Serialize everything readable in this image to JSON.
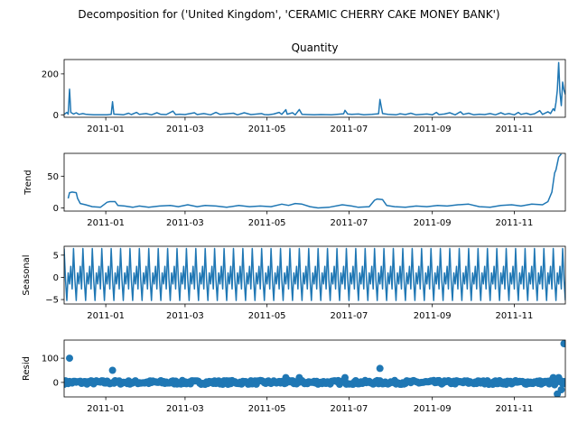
{
  "chart_data": {
    "type": "line",
    "title": "Decomposition for ('United Kingdom', 'CERAMIC CHERRY CAKE MONEY BANK')",
    "x_tick_labels": [
      "2011-01",
      "2011-03",
      "2011-05",
      "2011-07",
      "2011-09",
      "2011-11"
    ],
    "x_tick_dates": [
      "2011-01-01",
      "2011-03-01",
      "2011-05-01",
      "2011-07-01",
      "2011-09-01",
      "2011-11-01"
    ],
    "x_range": [
      "2010-12-01",
      "2011-12-09"
    ],
    "panels": [
      {
        "key": "observed",
        "title": "Quantity",
        "ylabel": "",
        "style": "line",
        "color": "#1f77b4",
        "ylim": [
          -12,
          270
        ],
        "yticks": [
          0,
          200
        ],
        "points": [
          [
            "2010-12-01",
            2
          ],
          [
            "2010-12-03",
            12
          ],
          [
            "2010-12-04",
            3
          ],
          [
            "2010-12-05",
            125
          ],
          [
            "2010-12-06",
            12
          ],
          [
            "2010-12-08",
            4
          ],
          [
            "2010-12-10",
            10
          ],
          [
            "2010-12-12",
            2
          ],
          [
            "2010-12-15",
            6
          ],
          [
            "2010-12-17",
            3
          ],
          [
            "2010-12-20",
            1
          ],
          [
            "2010-12-23",
            0
          ],
          [
            "2011-01-02",
            0
          ],
          [
            "2011-01-05",
            2
          ],
          [
            "2011-01-06",
            64
          ],
          [
            "2011-01-07",
            3
          ],
          [
            "2011-01-10",
            2
          ],
          [
            "2011-01-14",
            0
          ],
          [
            "2011-01-18",
            8
          ],
          [
            "2011-01-20",
            1
          ],
          [
            "2011-01-24",
            12
          ],
          [
            "2011-01-26",
            2
          ],
          [
            "2011-01-31",
            6
          ],
          [
            "2011-02-04",
            0
          ],
          [
            "2011-02-08",
            10
          ],
          [
            "2011-02-11",
            2
          ],
          [
            "2011-02-15",
            1
          ],
          [
            "2011-02-20",
            18
          ],
          [
            "2011-02-22",
            1
          ],
          [
            "2011-02-25",
            3
          ],
          [
            "2011-03-01",
            1
          ],
          [
            "2011-03-03",
            4
          ],
          [
            "2011-03-08",
            10
          ],
          [
            "2011-03-10",
            1
          ],
          [
            "2011-03-15",
            6
          ],
          [
            "2011-03-20",
            0
          ],
          [
            "2011-03-24",
            12
          ],
          [
            "2011-03-27",
            2
          ],
          [
            "2011-04-01",
            5
          ],
          [
            "2011-04-06",
            8
          ],
          [
            "2011-04-09",
            0
          ],
          [
            "2011-04-14",
            10
          ],
          [
            "2011-04-19",
            1
          ],
          [
            "2011-04-22",
            3
          ],
          [
            "2011-04-27",
            6
          ],
          [
            "2011-04-29",
            1
          ],
          [
            "2011-05-02",
            0
          ],
          [
            "2011-05-06",
            4
          ],
          [
            "2011-05-10",
            12
          ],
          [
            "2011-05-12",
            2
          ],
          [
            "2011-05-15",
            25
          ],
          [
            "2011-05-16",
            3
          ],
          [
            "2011-05-20",
            10
          ],
          [
            "2011-05-22",
            0
          ],
          [
            "2011-05-25",
            26
          ],
          [
            "2011-05-27",
            2
          ],
          [
            "2011-05-31",
            1
          ],
          [
            "2011-06-05",
            0
          ],
          [
            "2011-06-10",
            1
          ],
          [
            "2011-06-18",
            0
          ],
          [
            "2011-06-27",
            5
          ],
          [
            "2011-06-28",
            22
          ],
          [
            "2011-06-30",
            4
          ],
          [
            "2011-07-03",
            2
          ],
          [
            "2011-07-08",
            4
          ],
          [
            "2011-07-12",
            0
          ],
          [
            "2011-07-18",
            2
          ],
          [
            "2011-07-23",
            5
          ],
          [
            "2011-07-24",
            75
          ],
          [
            "2011-07-26",
            6
          ],
          [
            "2011-07-30",
            2
          ],
          [
            "2011-08-05",
            0
          ],
          [
            "2011-08-08",
            5
          ],
          [
            "2011-08-12",
            1
          ],
          [
            "2011-08-16",
            8
          ],
          [
            "2011-08-20",
            0
          ],
          [
            "2011-08-28",
            4
          ],
          [
            "2011-09-01",
            0
          ],
          [
            "2011-09-04",
            12
          ],
          [
            "2011-09-06",
            1
          ],
          [
            "2011-09-10",
            4
          ],
          [
            "2011-09-14",
            10
          ],
          [
            "2011-09-18",
            0
          ],
          [
            "2011-09-22",
            15
          ],
          [
            "2011-09-24",
            2
          ],
          [
            "2011-09-28",
            8
          ],
          [
            "2011-10-02",
            0
          ],
          [
            "2011-10-06",
            3
          ],
          [
            "2011-10-10",
            1
          ],
          [
            "2011-10-14",
            6
          ],
          [
            "2011-10-18",
            0
          ],
          [
            "2011-10-22",
            10
          ],
          [
            "2011-10-25",
            2
          ],
          [
            "2011-10-28",
            6
          ],
          [
            "2011-11-01",
            0
          ],
          [
            "2011-11-04",
            12
          ],
          [
            "2011-11-06",
            2
          ],
          [
            "2011-11-10",
            8
          ],
          [
            "2011-11-13",
            1
          ],
          [
            "2011-11-16",
            5
          ],
          [
            "2011-11-20",
            20
          ],
          [
            "2011-11-22",
            2
          ],
          [
            "2011-11-26",
            15
          ],
          [
            "2011-11-28",
            6
          ],
          [
            "2011-11-30",
            30
          ],
          [
            "2011-12-01",
            20
          ],
          [
            "2011-12-02",
            60
          ],
          [
            "2011-12-03",
            120
          ],
          [
            "2011-12-04",
            255
          ],
          [
            "2011-12-05",
            110
          ],
          [
            "2011-12-06",
            45
          ],
          [
            "2011-12-07",
            160
          ],
          [
            "2011-12-08",
            120
          ],
          [
            "2011-12-09",
            100
          ]
        ]
      },
      {
        "key": "trend",
        "title": "",
        "ylabel": "Trend",
        "style": "line",
        "color": "#1f77b4",
        "ylim": [
          -5,
          86
        ],
        "yticks": [
          0,
          50
        ],
        "points": [
          [
            "2010-12-04",
            15
          ],
          [
            "2010-12-05",
            24
          ],
          [
            "2010-12-07",
            25
          ],
          [
            "2010-12-10",
            24
          ],
          [
            "2010-12-11",
            15
          ],
          [
            "2010-12-13",
            7
          ],
          [
            "2010-12-17",
            5
          ],
          [
            "2010-12-22",
            2
          ],
          [
            "2010-12-28",
            1
          ],
          [
            "2011-01-02",
            9
          ],
          [
            "2011-01-04",
            10
          ],
          [
            "2011-01-08",
            10
          ],
          [
            "2011-01-10",
            4
          ],
          [
            "2011-01-15",
            3
          ],
          [
            "2011-01-21",
            1
          ],
          [
            "2011-01-26",
            3
          ],
          [
            "2011-02-02",
            1
          ],
          [
            "2011-02-10",
            3
          ],
          [
            "2011-02-18",
            4
          ],
          [
            "2011-02-24",
            2
          ],
          [
            "2011-03-03",
            5
          ],
          [
            "2011-03-10",
            2
          ],
          [
            "2011-03-16",
            4
          ],
          [
            "2011-03-24",
            3
          ],
          [
            "2011-04-01",
            1
          ],
          [
            "2011-04-10",
            4
          ],
          [
            "2011-04-18",
            2
          ],
          [
            "2011-04-26",
            3
          ],
          [
            "2011-05-04",
            2
          ],
          [
            "2011-05-12",
            6
          ],
          [
            "2011-05-17",
            4
          ],
          [
            "2011-05-22",
            7
          ],
          [
            "2011-05-27",
            6
          ],
          [
            "2011-06-02",
            2
          ],
          [
            "2011-06-08",
            0
          ],
          [
            "2011-06-16",
            1
          ],
          [
            "2011-06-26",
            5
          ],
          [
            "2011-07-03",
            3
          ],
          [
            "2011-07-08",
            1
          ],
          [
            "2011-07-16",
            2
          ],
          [
            "2011-07-20",
            12
          ],
          [
            "2011-07-22",
            14
          ],
          [
            "2011-07-26",
            13
          ],
          [
            "2011-07-29",
            4
          ],
          [
            "2011-08-04",
            2
          ],
          [
            "2011-08-12",
            1
          ],
          [
            "2011-08-20",
            3
          ],
          [
            "2011-08-28",
            2
          ],
          [
            "2011-09-05",
            4
          ],
          [
            "2011-09-12",
            3
          ],
          [
            "2011-09-20",
            5
          ],
          [
            "2011-09-28",
            6
          ],
          [
            "2011-10-06",
            2
          ],
          [
            "2011-10-14",
            1
          ],
          [
            "2011-10-22",
            4
          ],
          [
            "2011-10-30",
            5
          ],
          [
            "2011-11-06",
            3
          ],
          [
            "2011-11-14",
            6
          ],
          [
            "2011-11-22",
            5
          ],
          [
            "2011-11-26",
            10
          ],
          [
            "2011-11-29",
            25
          ],
          [
            "2011-12-01",
            55
          ],
          [
            "2011-12-02",
            60
          ],
          [
            "2011-12-04",
            80
          ],
          [
            "2011-12-06",
            85
          ]
        ]
      },
      {
        "key": "seasonal",
        "title": "",
        "ylabel": "Seasonal",
        "style": "seasonal",
        "color": "#1f77b4",
        "ylim": [
          -6,
          7
        ],
        "yticks": [
          -5,
          0,
          5
        ],
        "period_days": 7,
        "cycle_values": [
          6.5,
          -0.5,
          -5.2,
          1.0,
          -1.5,
          2.5,
          -2.6
        ]
      },
      {
        "key": "resid",
        "title": "",
        "ylabel": "Resid",
        "style": "scatter",
        "color": "#1f77b4",
        "ylim": [
          -60,
          175
        ],
        "yticks": [
          0,
          100
        ],
        "noise_amplitude": 8,
        "points": [
          [
            "2010-12-05",
            100
          ],
          [
            "2011-01-06",
            50
          ],
          [
            "2011-05-15",
            20
          ],
          [
            "2011-05-25",
            20
          ],
          [
            "2011-06-28",
            20
          ],
          [
            "2011-07-24",
            58
          ],
          [
            "2011-11-30",
            20
          ],
          [
            "2011-12-01",
            -10
          ],
          [
            "2011-12-03",
            -48
          ],
          [
            "2011-12-04",
            20
          ],
          [
            "2011-12-06",
            -30
          ],
          [
            "2011-12-08",
            160
          ]
        ]
      }
    ]
  }
}
